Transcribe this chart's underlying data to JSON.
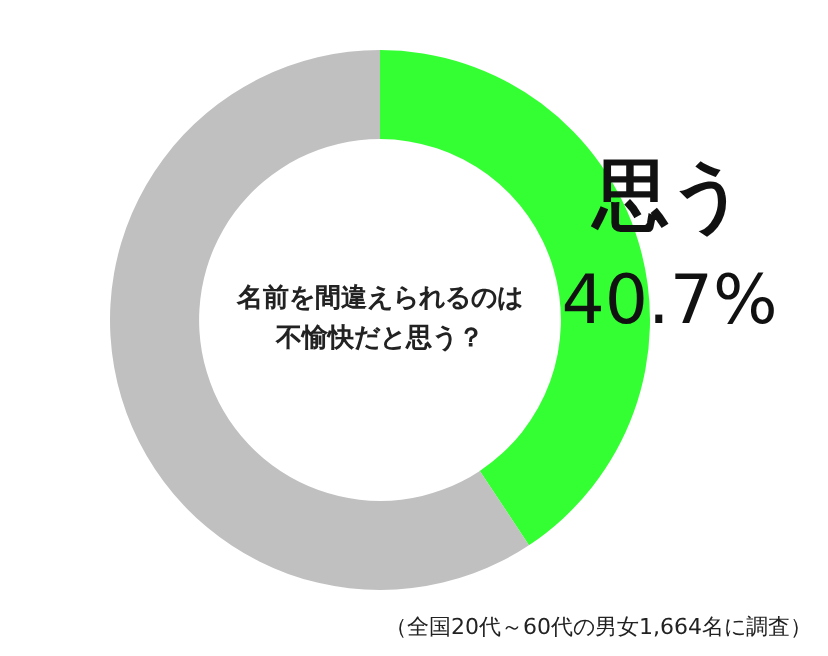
{
  "chart_data": {
    "type": "donut",
    "title": "名前を間違えられるのは不愉快だと思う？",
    "categories": [
      "思う",
      null
    ],
    "values": [
      40.7,
      59.3
    ],
    "value_labels": [
      "40.7%",
      null
    ],
    "colors": [
      "#33ff33",
      "#c0c0c0"
    ],
    "legend": false,
    "annotations": [
      "（全国20代～60代の男女1,664名に調査）"
    ]
  }
}
